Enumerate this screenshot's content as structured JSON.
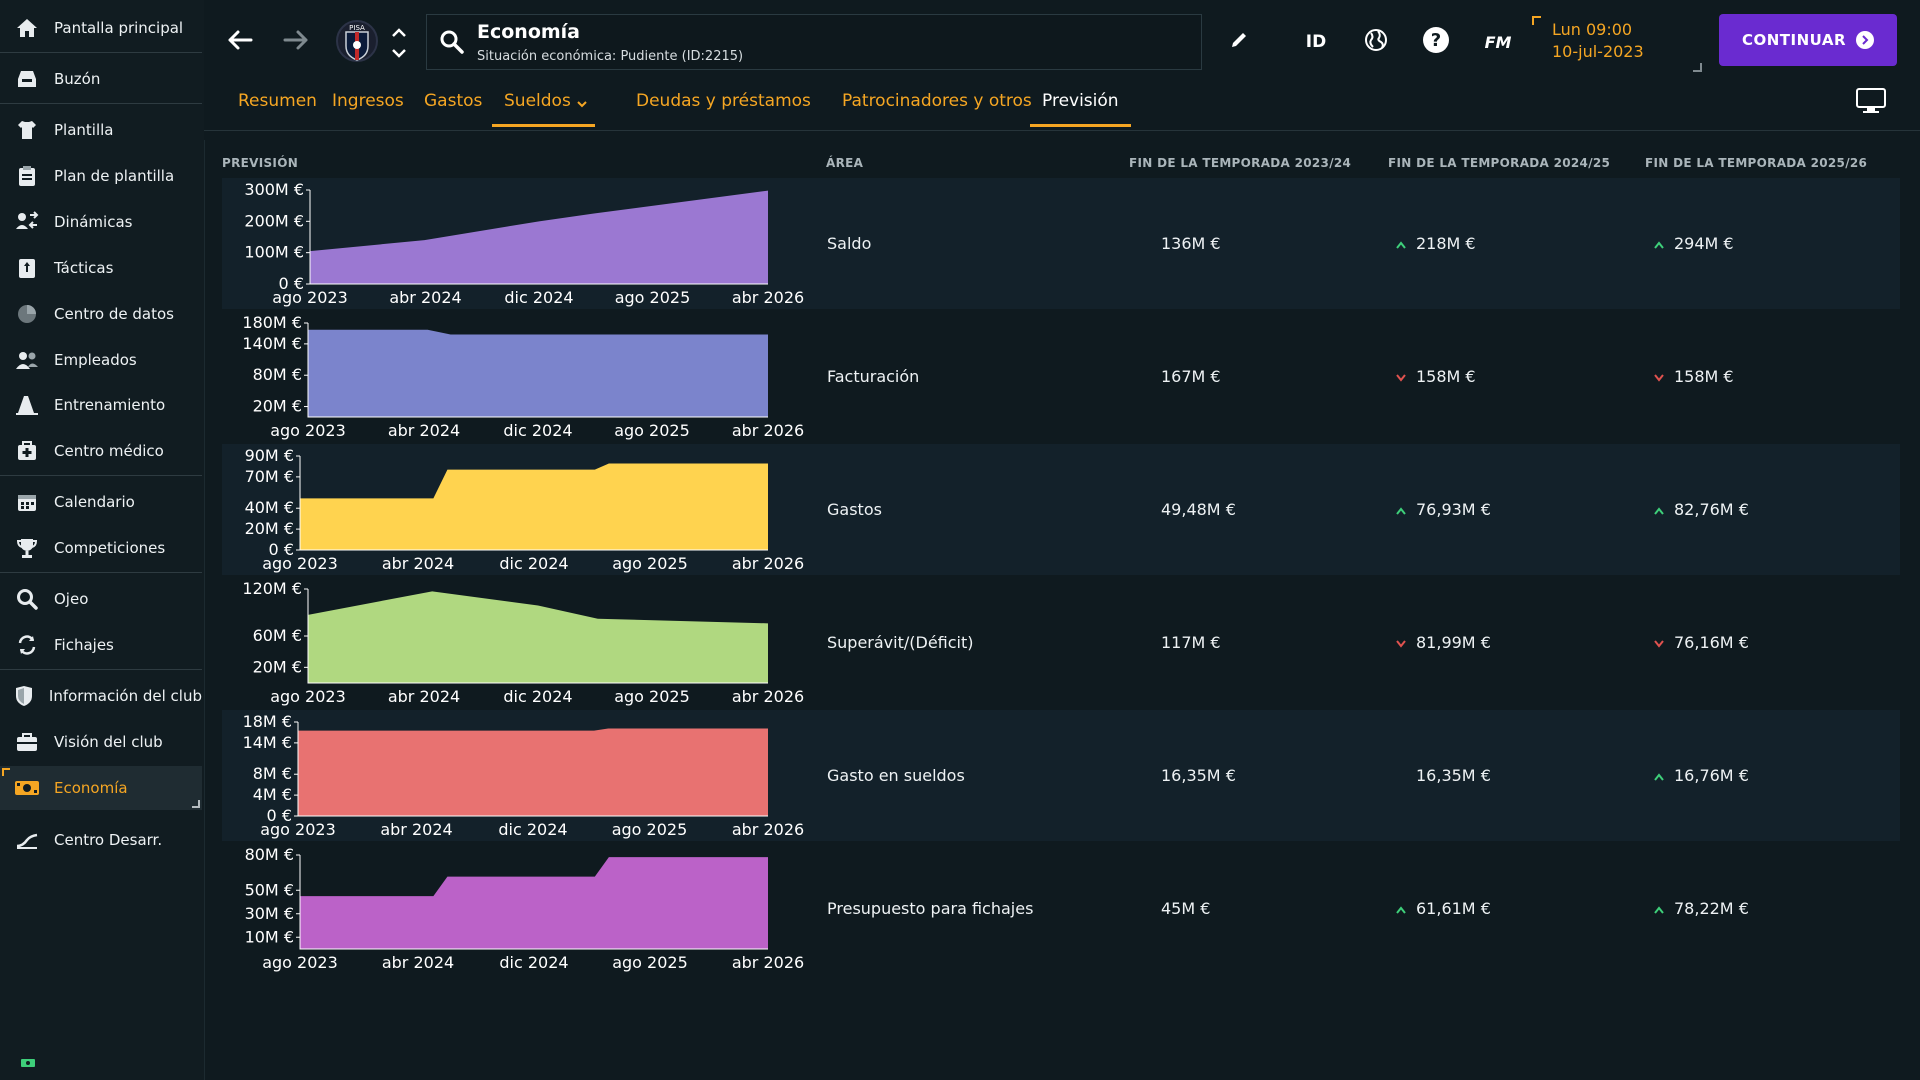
{
  "sidebar": {
    "items": [
      {
        "label": "Pantalla principal",
        "icon": "home-icon"
      },
      {
        "label": "Buzón",
        "icon": "inbox-icon"
      },
      {
        "label": "Plantilla",
        "icon": "shirt-icon"
      },
      {
        "label": "Plan de plantilla",
        "icon": "clipboard-icon"
      },
      {
        "label": "Dinámicas",
        "icon": "dynamics-icon"
      },
      {
        "label": "Tácticas",
        "icon": "tactics-board-icon"
      },
      {
        "label": "Centro de datos",
        "icon": "data-hub-icon"
      },
      {
        "label": "Empleados",
        "icon": "staff-icon"
      },
      {
        "label": "Entrenamiento",
        "icon": "training-cone-icon"
      },
      {
        "label": "Centro médico",
        "icon": "medical-kit-icon"
      },
      {
        "label": "Calendario",
        "icon": "calendar-icon"
      },
      {
        "label": "Competiciones",
        "icon": "trophy-icon"
      },
      {
        "label": "Ojeo",
        "icon": "magnifier-icon"
      },
      {
        "label": "Fichajes",
        "icon": "transfer-icon"
      },
      {
        "label": "Información del club",
        "icon": "club-shield-icon"
      },
      {
        "label": "Visión del club",
        "icon": "briefcase-icon"
      },
      {
        "label": "Economía",
        "icon": "money-icon"
      },
      {
        "label": "Centro Desarr.",
        "icon": "development-icon"
      }
    ]
  },
  "header": {
    "search_title": "Economía",
    "search_subtitle": "Situación económica: Pudiente (ID:2215)",
    "club_crest_text": "PISA",
    "id_label": "ID",
    "fm_label": "FM",
    "time": "Lun 09:00",
    "date": "10-jul-2023",
    "continue_label": "CONTINUAR"
  },
  "tabs": [
    {
      "label": "Resumen"
    },
    {
      "label": "Ingresos"
    },
    {
      "label": "Gastos"
    },
    {
      "label": "Sueldos"
    },
    {
      "label": "Deudas y préstamos"
    },
    {
      "label": "Patrocinadores y otros"
    },
    {
      "label": "Previsión"
    }
  ],
  "table": {
    "headers": {
      "forecast": "PREVISIÓN",
      "area": "ÁREA",
      "season1": "FIN DE LA TEMPORADA 2023/24",
      "season2": "FIN DE LA TEMPORADA 2024/25",
      "season3": "FIN DE LA TEMPORADA 2025/26"
    },
    "rows": [
      {
        "area": "Saldo",
        "v1": "136M €",
        "v2": "218M €",
        "t2": "up",
        "v3": "294M €",
        "t3": "up"
      },
      {
        "area": "Facturación",
        "v1": "167M €",
        "v2": "158M €",
        "t2": "down",
        "v3": "158M €",
        "t3": "down"
      },
      {
        "area": "Gastos",
        "v1": "49,48M €",
        "v2": "76,93M €",
        "t2": "up",
        "v3": "82,76M €",
        "t3": "up"
      },
      {
        "area": "Superávit/(Déficit)",
        "v1": "117M €",
        "v2": "81,99M €",
        "t2": "down",
        "v3": "76,16M €",
        "t3": "down"
      },
      {
        "area": "Gasto en sueldos",
        "v1": "16,35M €",
        "v2": "16,35M €",
        "t2": "none",
        "v3": "16,76M €",
        "t3": "up"
      },
      {
        "area": "Presupuesto para fichajes",
        "v1": "45M €",
        "v2": "61,61M €",
        "t2": "up",
        "v3": "78,22M €",
        "t3": "up"
      }
    ]
  },
  "colors": {
    "accent": "#f5a623",
    "continue": "#6a2bd0",
    "trend_up": "#3ecf7a",
    "trend_down": "#e0524f"
  },
  "chart_data": [
    {
      "type": "area",
      "title": "Saldo",
      "color": "#9b78d2",
      "x_ticks": [
        "ago 2023",
        "abr 2024",
        "dic 2024",
        "ago 2025",
        "abr 2026"
      ],
      "y_ticks": [
        "0 €",
        "100M €",
        "200M €",
        "300M €"
      ],
      "ylim": [
        0,
        300
      ],
      "x": [
        0,
        0.25,
        0.5,
        0.62,
        1.0
      ],
      "values": [
        105,
        140,
        200,
        225,
        298
      ]
    },
    {
      "type": "area",
      "title": "Facturación",
      "color": "#7b84cc",
      "x_ticks": [
        "ago 2023",
        "abr 2024",
        "dic 2024",
        "ago 2025",
        "abr 2026"
      ],
      "y_ticks": [
        "20M €",
        "80M €",
        "140M €",
        "180M €"
      ],
      "ylim": [
        0,
        180
      ],
      "x": [
        0,
        0.26,
        0.31,
        1.0
      ],
      "values": [
        167,
        167,
        158,
        158
      ]
    },
    {
      "type": "area",
      "title": "Gastos",
      "color": "#ffd34f",
      "x_ticks": [
        "ago 2023",
        "abr 2024",
        "dic 2024",
        "ago 2025",
        "abr 2026"
      ],
      "y_ticks": [
        "0 €",
        "20M €",
        "40M €",
        "70M €",
        "90M €"
      ],
      "ylim": [
        0,
        90
      ],
      "x": [
        0,
        0.285,
        0.315,
        0.63,
        0.66,
        1.0
      ],
      "values": [
        49.48,
        49.48,
        76.93,
        76.93,
        82.76,
        82.76
      ]
    },
    {
      "type": "area",
      "title": "Superávit/(Déficit)",
      "color": "#b0d880",
      "x_ticks": [
        "ago 2023",
        "abr 2024",
        "dic 2024",
        "ago 2025",
        "abr 2026"
      ],
      "y_ticks": [
        "20M €",
        "60M €",
        "120M €"
      ],
      "ylim": [
        0,
        120
      ],
      "x": [
        0,
        0.27,
        0.5,
        0.63,
        1.0
      ],
      "values": [
        87,
        117,
        99,
        81.99,
        76.16
      ]
    },
    {
      "type": "area",
      "title": "Gasto en sueldos",
      "color": "#e87271",
      "x_ticks": [
        "ago 2023",
        "abr 2024",
        "dic 2024",
        "ago 2025",
        "abr 2026"
      ],
      "y_ticks": [
        "0 €",
        "4M €",
        "8M €",
        "14M €",
        "18M €"
      ],
      "ylim": [
        0,
        18
      ],
      "x": [
        0,
        0.63,
        0.66,
        1.0
      ],
      "values": [
        16.35,
        16.35,
        16.76,
        16.76
      ]
    },
    {
      "type": "area",
      "title": "Presupuesto para fichajes",
      "color": "#bb62c8",
      "x_ticks": [
        "ago 2023",
        "abr 2024",
        "dic 2024",
        "ago 2025",
        "abr 2026"
      ],
      "y_ticks": [
        "10M €",
        "30M €",
        "50M €",
        "80M €"
      ],
      "ylim": [
        0,
        80
      ],
      "x": [
        0,
        0.285,
        0.315,
        0.63,
        0.66,
        1.0
      ],
      "values": [
        45,
        45,
        61.61,
        61.61,
        78.22,
        78.22
      ]
    }
  ]
}
